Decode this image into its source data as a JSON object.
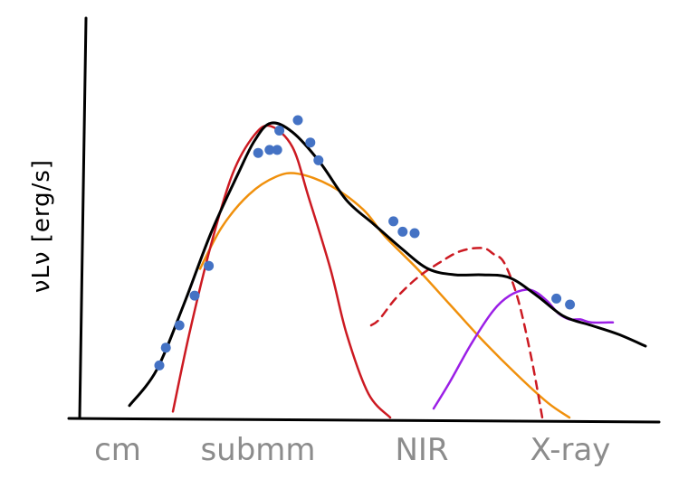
{
  "chart_data": {
    "type": "line",
    "title": "",
    "xlabel": "",
    "ylabel": "νLν [erg/s]",
    "x_categories": [
      "cm",
      "submm",
      "NIR",
      "X-ray"
    ],
    "xlim": [
      0,
      100
    ],
    "ylim": [
      0,
      100
    ],
    "grid": false,
    "legend": "none",
    "series": [
      {
        "role": "total",
        "color": "#000000",
        "style": "solid",
        "x": [
          5,
          10,
          15,
          20,
          25,
          28,
          31,
          35,
          40,
          45,
          50,
          55,
          60,
          65,
          70,
          75,
          80,
          85,
          90,
          95,
          100
        ],
        "y": [
          4,
          16,
          38,
          62,
          82,
          93,
          99,
          96,
          86,
          73,
          65,
          57,
          50,
          48,
          48,
          47,
          41,
          34,
          31,
          28,
          24
        ]
      },
      {
        "role": "component",
        "color": "#cc1a22",
        "style": "solid",
        "x": [
          13,
          16,
          20,
          24,
          28,
          31,
          35,
          38,
          42,
          45,
          49,
          53
        ],
        "y": [
          2,
          28,
          58,
          82,
          95,
          98,
          91,
          74,
          50,
          28,
          8,
          0
        ]
      },
      {
        "role": "component",
        "color": "#f0900c",
        "style": "solid",
        "x": [
          18,
          22,
          27,
          32,
          36,
          42,
          48,
          52,
          58,
          64,
          70,
          76,
          82,
          86
        ],
        "y": [
          50,
          64,
          75,
          81,
          82,
          78,
          70,
          61,
          50,
          38,
          26,
          15,
          5,
          0
        ]
      },
      {
        "role": "component",
        "color": "#cc1a22",
        "style": "dashed",
        "x": [
          49.5,
          51,
          54,
          58,
          62,
          66,
          70,
          72,
          74,
          76.5,
          79,
          81
        ],
        "y": [
          31,
          33,
          40,
          47,
          52,
          56,
          57,
          55,
          52,
          40,
          20,
          0
        ]
      },
      {
        "role": "component",
        "color": "#9b1fe6",
        "style": "solid",
        "x": [
          61,
          64,
          68,
          72,
          75,
          78,
          80,
          82,
          84,
          86,
          88,
          90,
          94
        ],
        "y": [
          3,
          12,
          25,
          36,
          41,
          43,
          42,
          39,
          35,
          33,
          33,
          32,
          32
        ]
      }
    ],
    "points": {
      "color": "#4472c4",
      "x": [
        10.5,
        11.7,
        14.2,
        17,
        19.6,
        28.7,
        30.8,
        32.6,
        32.2,
        36,
        38.3,
        39.8,
        53.6,
        55.3,
        57.5,
        83.6,
        86.1
      ],
      "y": [
        17.5,
        23.5,
        31,
        41,
        51,
        89,
        90,
        96.5,
        90,
        100,
        92.5,
        86.5,
        66,
        62.5,
        62,
        40,
        38
      ]
    }
  }
}
